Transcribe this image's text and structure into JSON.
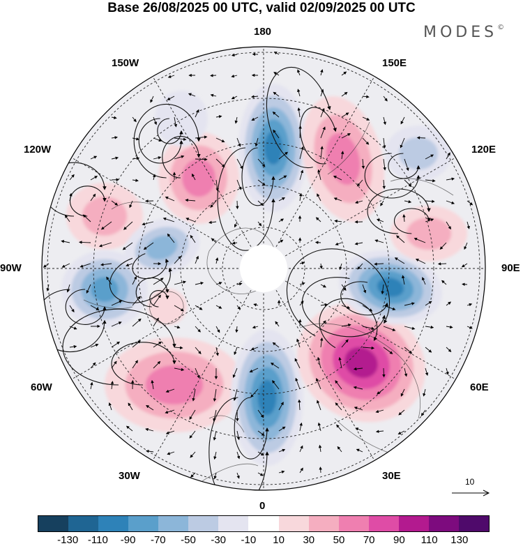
{
  "title": "Base 26/08/2025 00 UTC, valid 02/09/2025 00 UTC",
  "brand": {
    "name": "MODES",
    "mark": "©"
  },
  "lon_labels": {
    "n180": "180",
    "e150": "150E",
    "e120": "120E",
    "e90": "90E",
    "e60": "60E",
    "e30": "30E",
    "s0": "0",
    "w30": "30W",
    "w60": "60W",
    "w90": "90W",
    "w120": "120W",
    "w150": "150W"
  },
  "vector_reference": "10",
  "colorbar": {
    "colors": [
      "#16405e",
      "#1f6593",
      "#2e82b8",
      "#5a9fcb",
      "#8cb6d9",
      "#bccbe3",
      "#e4e4f0",
      "#ffffff",
      "#f8d8dc",
      "#f5aec0",
      "#ef7fb0",
      "#df4ca6",
      "#b31a8f",
      "#7d0b7e",
      "#4f0a6b"
    ],
    "tick_labels": [
      "-130",
      "-110",
      "-90",
      "-70",
      "-50",
      "-30",
      "-10",
      "10",
      "30",
      "50",
      "70",
      "90",
      "110",
      "130"
    ]
  },
  "anomaly_centers": [
    {
      "name": "negative-near-180",
      "sign": "negative",
      "peak": -110
    },
    {
      "name": "positive-kamchatka",
      "sign": "positive",
      "peak": 70
    },
    {
      "name": "positive-120w",
      "sign": "positive",
      "peak": 70
    },
    {
      "name": "positive-150w",
      "sign": "positive",
      "peak": 50
    },
    {
      "name": "negative-canada",
      "sign": "negative",
      "peak": -70
    },
    {
      "name": "negative-hudson",
      "sign": "negative",
      "peak": -90
    },
    {
      "name": "positive-labrador",
      "sign": "positive",
      "peak": 30
    },
    {
      "name": "positive-atlantic",
      "sign": "positive",
      "peak": 70
    },
    {
      "name": "negative-europe",
      "sign": "negative",
      "peak": -110
    },
    {
      "name": "positive-russia",
      "sign": "positive",
      "peak": 110
    },
    {
      "name": "negative-siberia",
      "sign": "negative",
      "peak": -110
    },
    {
      "name": "positive-central-siberia",
      "sign": "positive",
      "peak": 50
    },
    {
      "name": "negative-east-asia",
      "sign": "negative",
      "peak": -50
    },
    {
      "name": "negative-pacific-small",
      "sign": "negative",
      "peak": -30
    }
  ]
}
